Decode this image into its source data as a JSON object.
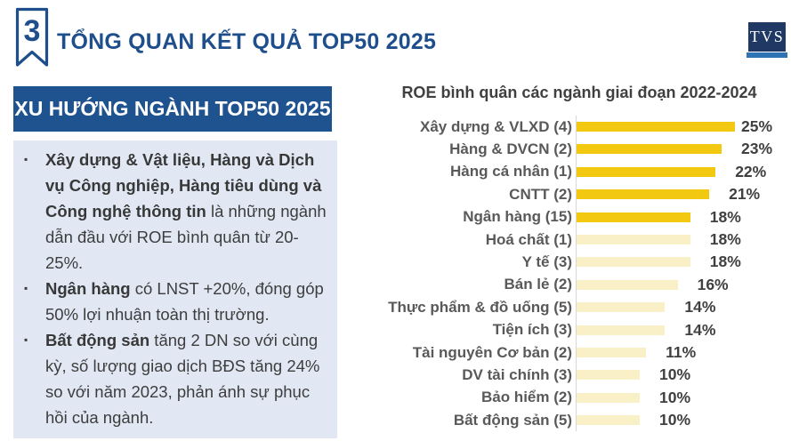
{
  "header": {
    "badge_number": "3",
    "title": "TỔNG QUAN KẾT QUẢ TOP50 2025",
    "logo_text": "TVS"
  },
  "panel": {
    "title": "XU HƯỚNG NGÀNH TOP50 2025",
    "bullet_char": "▪",
    "bullets": [
      {
        "bold": "Xây dựng & Vật liệu, Hàng và Dịch vụ Công nghiệp, Hàng tiêu dùng và Công nghệ thông tin",
        "rest": " là những ngành dẫn đầu với ROE bình quân từ 20-25%."
      },
      {
        "bold": "Ngân hàng",
        "rest": " có LNST +20%, đóng góp 50% lợi nhuận toàn thị trường."
      },
      {
        "bold": "Bất động sản",
        "rest": " tăng 2 DN so với cùng kỳ, số lượng giao dịch BĐS tăng 24% so với năm 2023, phản ánh sự phục hồi của ngành."
      }
    ]
  },
  "chart_data": {
    "type": "bar",
    "orientation": "horizontal",
    "title": "ROE bình quân các ngành giai đoạn 2022-2024",
    "categories": [
      "Xây dựng & VLXD (4)",
      "Hàng & DVCN (2)",
      "Hàng cá nhân (1)",
      "CNTT (2)",
      "Ngân hàng (15)",
      "Hoá chất (1)",
      "Y tế (3)",
      "Bán lẻ (2)",
      "Thực phẩm & đồ uống (5)",
      "Tiện ích (3)",
      "Tài nguyên Cơ bản (2)",
      "DV tài chính (3)",
      "Bảo hiểm (2)",
      "Bất động sản (5)"
    ],
    "values": [
      25,
      23,
      22,
      21,
      18,
      18,
      18,
      16,
      14,
      14,
      11,
      10,
      10,
      10
    ],
    "value_labels": [
      "25%",
      "23%",
      "22%",
      "21%",
      "18%",
      "18%",
      "18%",
      "16%",
      "14%",
      "14%",
      "11%",
      "10%",
      "10%",
      "10%"
    ],
    "highlight_count": 5,
    "highlight_color": "#F2C811",
    "muted_color": "#FAF0C8",
    "xlabel": "",
    "ylabel": "",
    "xlim": [
      0,
      26
    ],
    "grid": false,
    "legend": false
  },
  "colors": {
    "accent_blue": "#1E4E8C",
    "panel_header_bg": "#1F538F",
    "panel_bg": "#E1E8F4",
    "logo_navy": "#1F3864",
    "logo_strip": "#2E74B5",
    "axis_line": "#D8D8D8"
  }
}
